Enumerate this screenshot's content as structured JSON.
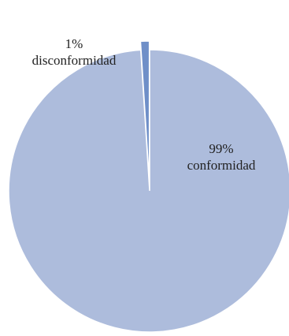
{
  "chart_data": {
    "type": "pie",
    "slices": [
      {
        "category": "conformidad",
        "value": 99,
        "percent_label": "99%",
        "color": "#adbcdc",
        "exploded": false
      },
      {
        "category": "disconformidad",
        "value": 1,
        "percent_label": "1%",
        "color": "#6f8fc8",
        "exploded": true
      }
    ],
    "legend": "none",
    "data_labels": "category and percent"
  }
}
